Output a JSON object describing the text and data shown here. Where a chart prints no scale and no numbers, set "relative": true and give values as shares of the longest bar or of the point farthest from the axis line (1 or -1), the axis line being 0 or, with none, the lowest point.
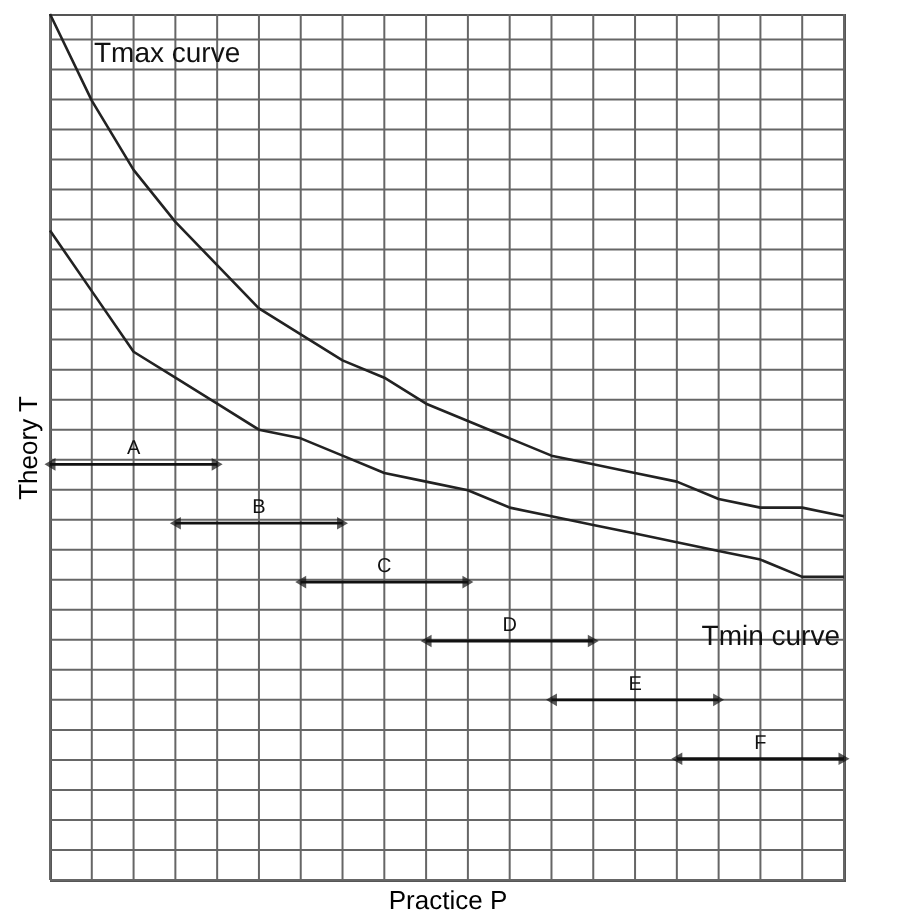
{
  "chart_data": {
    "type": "line",
    "relative": true,
    "xlabel": "Practice P",
    "ylabel": "Theory T",
    "categories": [
      null,
      null,
      null,
      null,
      null,
      null,
      null,
      null,
      null,
      null,
      null,
      null,
      null,
      null,
      null,
      null,
      null,
      null,
      null,
      null
    ],
    "series": [
      {
        "name": "Tmax curve",
        "color": "#222222",
        "values": [
          1.0,
          0.9,
          0.82,
          0.76,
          0.71,
          0.66,
          0.63,
          0.6,
          0.58,
          0.55,
          0.53,
          0.51,
          0.49,
          0.48,
          0.47,
          0.46,
          0.44,
          0.43,
          0.43,
          0.42
        ]
      },
      {
        "name": "Tmin curve",
        "color": "#222222",
        "values": [
          0.75,
          0.68,
          0.61,
          0.58,
          0.55,
          0.52,
          0.51,
          0.49,
          0.47,
          0.46,
          0.45,
          0.43,
          0.42,
          0.41,
          0.4,
          0.39,
          0.38,
          0.37,
          0.35,
          0.35
        ]
      }
    ],
    "annotations": [
      "A",
      "B",
      "C",
      "D",
      "E",
      "F"
    ],
    "grid": true,
    "marker": "none",
    "line_style": "solid"
  }
}
